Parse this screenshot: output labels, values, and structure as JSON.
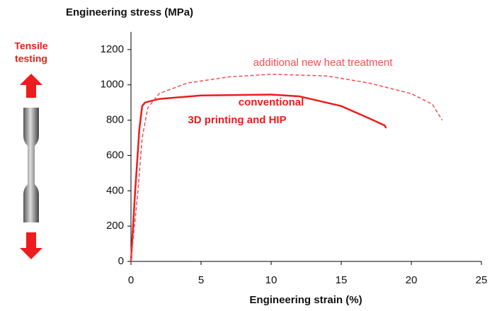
{
  "chart_data": {
    "type": "line",
    "y_label": "Engineering stress (MPa)",
    "x_label": "Engineering strain (%)",
    "side_label": [
      "Tensile",
      "testing"
    ],
    "xlim": [
      0,
      25
    ],
    "xticks": [
      0,
      5,
      10,
      15,
      20,
      25
    ],
    "ylim": [
      0,
      1300
    ],
    "yticks": [
      0,
      200,
      400,
      600,
      800,
      1000,
      1200
    ],
    "series": [
      {
        "color": "#ee1c1c",
        "style": "solid",
        "label": [
          "conventional",
          "3D printing and HIP"
        ],
        "x": [
          0,
          0.3,
          0.6,
          0.8,
          1,
          2,
          5,
          10,
          12,
          15,
          17,
          18.1,
          18.2
        ],
        "values": [
          0,
          400,
          750,
          880,
          900,
          920,
          940,
          945,
          935,
          880,
          810,
          770,
          755
        ]
      },
      {
        "color": "#f05050",
        "style": "dashed",
        "label": [
          "additional new heat treatment"
        ],
        "x": [
          0,
          0.5,
          0.8,
          1.2,
          2,
          4,
          7,
          10,
          14,
          17,
          20,
          21.5,
          22.2
        ],
        "values": [
          0,
          400,
          700,
          870,
          950,
          1010,
          1045,
          1060,
          1050,
          1010,
          950,
          890,
          800
        ]
      }
    ]
  }
}
